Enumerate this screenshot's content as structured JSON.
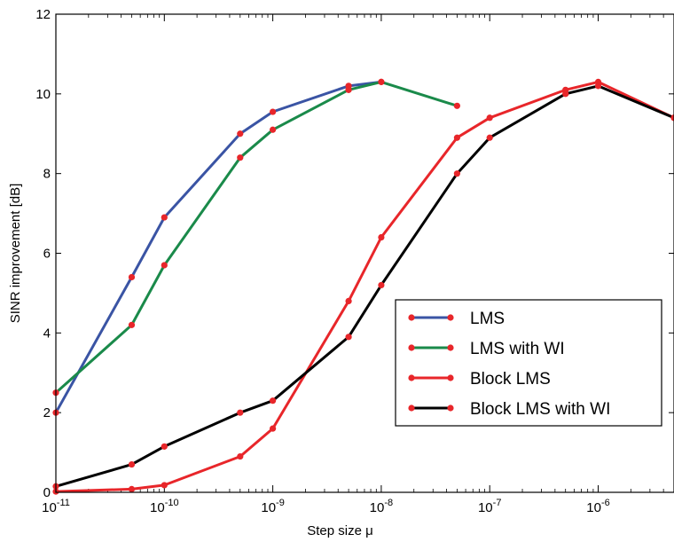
{
  "chart_data": {
    "type": "line",
    "title": "",
    "xlabel": "Step size μ",
    "ylabel": "SINR improvement [dB]",
    "xscale": "log",
    "xlim": [
      1e-11,
      5e-06
    ],
    "ylim": [
      0,
      12
    ],
    "yticks": [
      "0",
      "2",
      "4",
      "6",
      "8",
      "10",
      "12"
    ],
    "xticks": [
      {
        "value": 1e-11,
        "base": "10",
        "exp": "-11"
      },
      {
        "value": 1e-10,
        "base": "10",
        "exp": "-10"
      },
      {
        "value": 1e-09,
        "base": "10",
        "exp": "-9"
      },
      {
        "value": 1e-08,
        "base": "10",
        "exp": "-8"
      },
      {
        "value": 1e-07,
        "base": "10",
        "exp": "-7"
      },
      {
        "value": 1e-06,
        "base": "10",
        "exp": "-6"
      }
    ],
    "legend_position": "lower-right",
    "marker_color": "#e8262a",
    "series": [
      {
        "name": "LMS",
        "color": "#3a54a4",
        "x": [
          1e-11,
          5e-11,
          1e-10,
          5e-10,
          1e-09,
          5e-09,
          1e-08
        ],
        "y": [
          2.0,
          5.4,
          6.9,
          9.0,
          9.55,
          10.2,
          10.3
        ]
      },
      {
        "name": "LMS with WI",
        "color": "#1a8a4a",
        "x": [
          1e-11,
          5e-11,
          1e-10,
          5e-10,
          1e-09,
          5e-09,
          1e-08,
          5e-08
        ],
        "y": [
          2.5,
          4.2,
          5.7,
          8.4,
          9.1,
          10.1,
          10.3,
          9.7
        ]
      },
      {
        "name": "Block LMS",
        "color": "#e8262a",
        "x": [
          1e-11,
          5e-11,
          1e-10,
          5e-10,
          1e-09,
          5e-09,
          1e-08,
          5e-08,
          1e-07,
          5e-07,
          1e-06,
          5e-06
        ],
        "y": [
          0.02,
          0.08,
          0.18,
          0.9,
          1.6,
          4.8,
          6.4,
          8.9,
          9.4,
          10.1,
          10.3,
          9.4
        ]
      },
      {
        "name": "Block LMS with WI",
        "color": "#000000",
        "x": [
          1e-11,
          5e-11,
          1e-10,
          5e-10,
          1e-09,
          5e-09,
          1e-08,
          5e-08,
          1e-07,
          5e-07,
          1e-06,
          5e-06
        ],
        "y": [
          0.15,
          0.7,
          1.15,
          2.0,
          2.3,
          3.9,
          5.2,
          8.0,
          8.9,
          10.0,
          10.2,
          9.4
        ]
      }
    ]
  }
}
